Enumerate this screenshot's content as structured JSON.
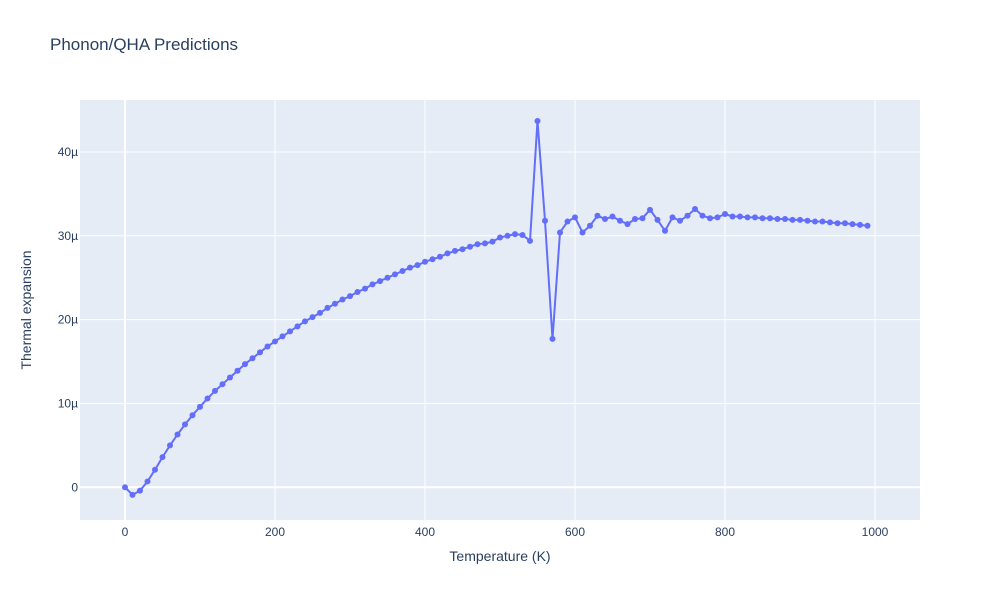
{
  "chart_data": {
    "type": "line",
    "title": "Phonon/QHA Predictions",
    "xlabel": "Temperature (K)",
    "ylabel": "Thermal expansion",
    "xlim": [
      -60,
      1060
    ],
    "ylim": [
      -3.9e-06,
      4.62e-05
    ],
    "x_ticks": [
      0,
      200,
      400,
      600,
      800,
      1000
    ],
    "x_tick_labels": [
      "0",
      "200",
      "400",
      "600",
      "800",
      "1000"
    ],
    "y_ticks": [
      0,
      1e-05,
      2e-05,
      3e-05,
      4e-05
    ],
    "y_tick_labels": [
      "0",
      "10µ",
      "20µ",
      "30µ",
      "40µ"
    ],
    "grid": true,
    "legend": "none",
    "colors": {
      "line": "#636efa",
      "plot_bg": "#e5ecf6",
      "text": "#2a3f5f"
    },
    "series": [
      {
        "x": [
          0,
          10,
          20,
          30,
          40,
          50,
          60,
          70,
          80,
          90,
          100,
          110,
          120,
          130,
          140,
          150,
          160,
          170,
          180,
          190,
          200,
          210,
          220,
          230,
          240,
          250,
          260,
          270,
          280,
          290,
          300,
          310,
          320,
          330,
          340,
          350,
          360,
          370,
          380,
          390,
          400,
          410,
          420,
          430,
          440,
          450,
          460,
          470,
          480,
          490,
          500,
          510,
          520,
          530,
          540,
          550,
          560,
          570,
          580,
          590,
          600,
          610,
          620,
          630,
          640,
          650,
          660,
          670,
          680,
          690,
          700,
          710,
          720,
          730,
          740,
          750,
          760,
          770,
          780,
          790,
          800,
          810,
          820,
          830,
          840,
          850,
          860,
          870,
          880,
          890,
          900,
          910,
          920,
          930,
          940,
          950,
          960,
          970,
          980,
          990
        ],
        "y": [
          0,
          -9e-07,
          -4e-07,
          7e-07,
          2.1e-06,
          3.6e-06,
          5e-06,
          6.3e-06,
          7.5e-06,
          8.6e-06,
          9.6e-06,
          1.06e-05,
          1.15e-05,
          1.23e-05,
          1.31e-05,
          1.39e-05,
          1.47e-05,
          1.54e-05,
          1.61e-05,
          1.68e-05,
          1.74e-05,
          1.8e-05,
          1.86e-05,
          1.92e-05,
          1.98e-05,
          2.03e-05,
          2.08e-05,
          2.14e-05,
          2.19e-05,
          2.24e-05,
          2.28e-05,
          2.33e-05,
          2.37e-05,
          2.42e-05,
          2.46e-05,
          2.5e-05,
          2.54e-05,
          2.58e-05,
          2.62e-05,
          2.65e-05,
          2.69e-05,
          2.72e-05,
          2.75e-05,
          2.79e-05,
          2.82e-05,
          2.84e-05,
          2.87e-05,
          2.9e-05,
          2.91e-05,
          2.93e-05,
          2.98e-05,
          3e-05,
          3.02e-05,
          3.01e-05,
          2.94e-05,
          4.37e-05,
          3.18e-05,
          1.77e-05,
          3.04e-05,
          3.17e-05,
          3.22e-05,
          3.04e-05,
          3.12e-05,
          3.24e-05,
          3.2e-05,
          3.23e-05,
          3.18e-05,
          3.14e-05,
          3.2e-05,
          3.21e-05,
          3.31e-05,
          3.19e-05,
          3.06e-05,
          3.22e-05,
          3.18e-05,
          3.24e-05,
          3.32e-05,
          3.24e-05,
          3.21e-05,
          3.22e-05,
          3.26e-05,
          3.23e-05,
          3.23e-05,
          3.22e-05,
          3.22e-05,
          3.21e-05,
          3.21e-05,
          3.2e-05,
          3.2e-05,
          3.19e-05,
          3.19e-05,
          3.18e-05,
          3.17e-05,
          3.17e-05,
          3.16e-05,
          3.15e-05,
          3.15e-05,
          3.14e-05,
          3.13e-05,
          3.12e-05
        ]
      }
    ]
  }
}
